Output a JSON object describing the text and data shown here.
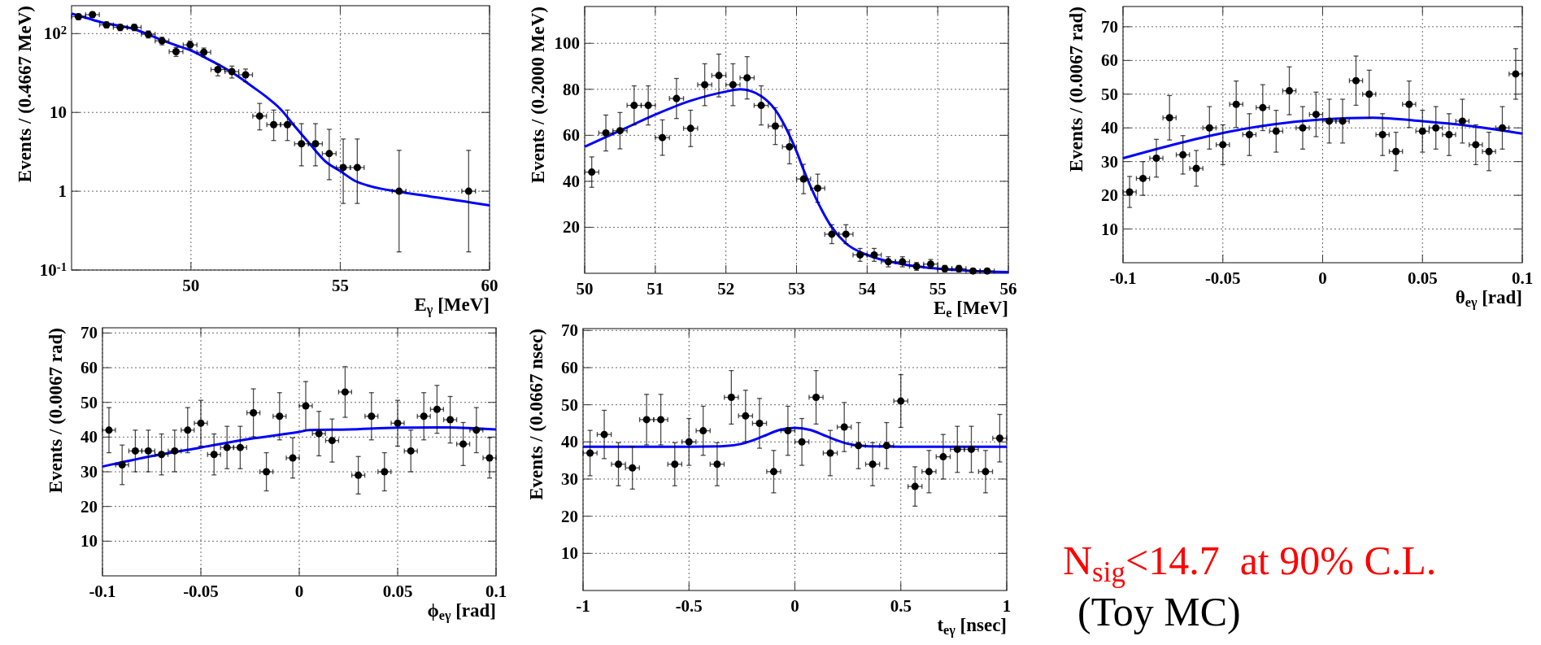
{
  "chart_data": [
    {
      "type": "scatter",
      "xlabel": "E$_{γ}$ [MeV]",
      "ylabel": "Events / (0.4667 MeV)",
      "xlim": [
        46,
        60
      ],
      "ylim": [
        0.1,
        226
      ],
      "xticks": [
        50,
        55,
        60
      ],
      "yticks": [
        {
          "value": 0.1,
          "label": "10$^{-1}$"
        },
        1,
        10,
        {
          "value": 100,
          "label": "10$^{2}$"
        }
      ],
      "log": "y",
      "grid": true,
      "series": [
        {
          "color": "#000000",
          "marker": "circle",
          "x": [
            46.23,
            46.7,
            47.17,
            47.63,
            48.1,
            48.57,
            49.03,
            49.5,
            49.97,
            50.43,
            50.9,
            51.37,
            51.83,
            52.3,
            52.77,
            53.23,
            53.7,
            54.17,
            54.63,
            55.1,
            55.57,
            56.97,
            59.3
          ],
          "values": [
            164,
            174,
            129,
            120,
            120,
            98,
            81,
            59,
            72,
            58,
            35,
            33,
            30,
            9,
            7,
            7,
            4,
            4,
            3,
            2,
            2,
            1,
            1
          ],
          "errors": [
            13,
            13,
            11,
            11,
            11,
            10,
            9,
            7.7,
            8.5,
            7.6,
            5.9,
            5.7,
            5.5,
            [
              6,
              13
            ],
            [
              4.4,
              10.7
            ],
            [
              4.4,
              10.7
            ],
            [
              2.1,
              7.2
            ],
            [
              2.1,
              7.2
            ],
            [
              1.4,
              6.1
            ],
            [
              0.7,
              4.6
            ],
            [
              0.7,
              4.6
            ],
            [
              0.17,
              3.3
            ],
            [
              0.17,
              3.3
            ]
          ],
          "xerrors": [
            0.23,
            0.23,
            0.23,
            0.23,
            0.23,
            0.23,
            0.23,
            0.23,
            0.23,
            0.23,
            0.23,
            0.23,
            0.23,
            0.23,
            0.23,
            0.23,
            0.23,
            0.23,
            0.23,
            0.23,
            0.23,
            0.23,
            0.23
          ]
        },
        {
          "type": "line",
          "color": "#0000ff",
          "x": [
            46,
            46.5,
            47,
            47.5,
            48,
            48.5,
            49,
            49.5,
            50,
            50.5,
            51,
            51.5,
            52,
            52.5,
            53,
            53.5,
            54,
            54.5,
            55,
            55.5,
            56,
            57,
            58,
            59,
            60
          ],
          "values": [
            179,
            158,
            139,
            128,
            117,
            100,
            83,
            71,
            61,
            49,
            39,
            30,
            22,
            16,
            11,
            6.5,
            3.9,
            2.4,
            1.8,
            1.35,
            1.16,
            0.98,
            0.86,
            0.76,
            0.66
          ]
        }
      ]
    },
    {
      "type": "scatter",
      "xlabel": "E$_{e}$ [MeV]",
      "ylabel": "Events / (0.2000 MeV)",
      "xlim": [
        50,
        56
      ],
      "ylim": [
        0,
        116
      ],
      "xticks": [
        50,
        51,
        52,
        53,
        54,
        55,
        56
      ],
      "yticks": [
        20,
        40,
        60,
        80,
        100
      ],
      "grid": true,
      "series": [
        {
          "color": "#000000",
          "marker": "circle",
          "x": [
            50.1,
            50.3,
            50.5,
            50.7,
            50.9,
            51.1,
            51.3,
            51.5,
            51.7,
            51.9,
            52.1,
            52.3,
            52.5,
            52.7,
            52.9,
            53.1,
            53.3,
            53.5,
            53.7,
            53.9,
            54.1,
            54.3,
            54.5,
            54.7,
            54.9,
            55.1,
            55.3,
            55.5,
            55.7
          ],
          "values": [
            44,
            61,
            62,
            73,
            73,
            59,
            76,
            63,
            82,
            86,
            82,
            85,
            73,
            64,
            55,
            41,
            37,
            17,
            17,
            8,
            8,
            5,
            5,
            3,
            4,
            2,
            2,
            1,
            1
          ],
          "errors": [
            6.6,
            7.8,
            7.9,
            8.5,
            8.5,
            7.7,
            8.7,
            7.9,
            9.1,
            9.3,
            9.1,
            9.2,
            8.5,
            8,
            7.4,
            6.4,
            6.1,
            4.1,
            4.1,
            2.8,
            2.8,
            2.2,
            2.2,
            1.7,
            2,
            1.4,
            1.4,
            1,
            1
          ],
          "xerrors": [
            0.1,
            0.1,
            0.1,
            0.1,
            0.1,
            0.1,
            0.1,
            0.1,
            0.1,
            0.1,
            0.1,
            0.1,
            0.1,
            0.1,
            0.1,
            0.1,
            0.1,
            0.1,
            0.1,
            0.1,
            0.1,
            0.1,
            0.1,
            0.1,
            0.1,
            0.1,
            0.1,
            0.1,
            0.1
          ]
        },
        {
          "type": "line",
          "color": "#0000ff",
          "x": [
            50,
            50.5,
            51,
            51.5,
            52,
            52.2,
            52.5,
            52.7,
            52.9,
            53,
            53.1,
            53.3,
            53.5,
            53.7,
            54,
            54.5,
            55,
            55.5,
            56
          ],
          "values": [
            55,
            62,
            69,
            75,
            79,
            80,
            77,
            71,
            60,
            53,
            45,
            31,
            20,
            13,
            8,
            4,
            2,
            1,
            0.5
          ]
        }
      ]
    },
    {
      "type": "scatter",
      "xlabel": "θ$_{eγ}$ [rad]",
      "ylabel": "Events / (0.0067 rad)",
      "xlim": [
        -0.1,
        0.1
      ],
      "ylim": [
        0,
        76
      ],
      "xticks": [
        -0.1,
        -0.05,
        0,
        0.05,
        0.1
      ],
      "yticks": [
        10,
        20,
        30,
        40,
        50,
        60,
        70
      ],
      "grid": true,
      "series": [
        {
          "color": "#000000",
          "marker": "circle",
          "x": [
            -0.0967,
            -0.09,
            -0.0833,
            -0.0767,
            -0.07,
            -0.0633,
            -0.0567,
            -0.05,
            -0.0433,
            -0.0367,
            -0.03,
            -0.0233,
            -0.0167,
            -0.01,
            -0.0033,
            0.0033,
            0.01,
            0.0167,
            0.0233,
            0.03,
            0.0367,
            0.0433,
            0.05,
            0.0567,
            0.0633,
            0.07,
            0.0767,
            0.0833,
            0.09,
            0.0967
          ],
          "values": [
            21,
            25,
            31,
            43,
            32,
            28,
            40,
            35,
            47,
            38,
            46,
            39,
            51,
            40,
            44,
            42,
            42,
            54,
            50,
            38,
            33,
            47,
            39,
            40,
            38,
            42,
            35,
            33,
            40,
            56
          ],
          "errors": [
            4.6,
            5,
            5.6,
            6.6,
            5.7,
            5.3,
            6.3,
            5.9,
            6.9,
            6.2,
            6.8,
            6.2,
            7.1,
            6.3,
            6.6,
            6.5,
            6.5,
            7.3,
            7.1,
            6.2,
            5.7,
            6.9,
            6.2,
            6.3,
            6.2,
            6.5,
            5.9,
            5.7,
            6.3,
            7.5
          ],
          "xerrors": [
            0.0033,
            0.0033,
            0.0033,
            0.0033,
            0.0033,
            0.0033,
            0.0033,
            0.0033,
            0.0033,
            0.0033,
            0.0033,
            0.0033,
            0.0033,
            0.0033,
            0.0033,
            0.0033,
            0.0033,
            0.0033,
            0.0033,
            0.0033,
            0.0033,
            0.0033,
            0.0033,
            0.0033,
            0.0033,
            0.0033,
            0.0033,
            0.0033,
            0.0033,
            0.0033
          ]
        },
        {
          "type": "line",
          "color": "#0000ff",
          "x": [
            -0.1,
            -0.075,
            -0.05,
            -0.025,
            0,
            0.025,
            0.05,
            0.075,
            0.1
          ],
          "values": [
            31,
            35,
            38.5,
            41,
            42.5,
            43,
            42,
            40.5,
            38.3
          ]
        }
      ]
    },
    {
      "type": "scatter",
      "xlabel": "ϕ$_{eγ}$ [rad]",
      "ylabel": "Events / (0.0067 rad)",
      "xlim": [
        -0.1,
        0.1
      ],
      "ylim": [
        0,
        71.5
      ],
      "xticks": [
        -0.1,
        -0.05,
        0,
        0.05,
        0.1
      ],
      "yticks": [
        10,
        20,
        30,
        40,
        50,
        60,
        70
      ],
      "grid": true,
      "series": [
        {
          "color": "#000000",
          "marker": "circle",
          "x": [
            -0.0967,
            -0.09,
            -0.0833,
            -0.0767,
            -0.07,
            -0.0633,
            -0.0567,
            -0.05,
            -0.0433,
            -0.0367,
            -0.03,
            -0.0233,
            -0.0167,
            -0.01,
            -0.0033,
            0.0033,
            0.01,
            0.0167,
            0.0233,
            0.03,
            0.0367,
            0.0433,
            0.05,
            0.0567,
            0.0633,
            0.07,
            0.0767,
            0.0833,
            0.09,
            0.0967
          ],
          "values": [
            42,
            32,
            36,
            36,
            35,
            36,
            42,
            44,
            35,
            37,
            37,
            47,
            30,
            46,
            34,
            49,
            41,
            39,
            53,
            29,
            46,
            30,
            44,
            36,
            46,
            48,
            45,
            38,
            42,
            34
          ],
          "errors": [
            6.5,
            5.7,
            6,
            6,
            5.9,
            6,
            6.5,
            6.6,
            5.9,
            6.1,
            6.1,
            6.9,
            5.5,
            6.8,
            5.8,
            7,
            6.4,
            6.2,
            7.3,
            5.4,
            6.8,
            5.5,
            6.6,
            6,
            6.8,
            6.9,
            6.7,
            6.2,
            6.5,
            5.8
          ],
          "xerrors": [
            0.0033,
            0.0033,
            0.0033,
            0.0033,
            0.0033,
            0.0033,
            0.0033,
            0.0033,
            0.0033,
            0.0033,
            0.0033,
            0.0033,
            0.0033,
            0.0033,
            0.0033,
            0.0033,
            0.0033,
            0.0033,
            0.0033,
            0.0033,
            0.0033,
            0.0033,
            0.0033,
            0.0033,
            0.0033,
            0.0033,
            0.0033,
            0.0033,
            0.0033,
            0.0033
          ]
        },
        {
          "type": "line",
          "color": "#0000ff",
          "x": [
            -0.1,
            -0.075,
            -0.05,
            -0.025,
            0,
            0.005,
            0.025,
            0.05,
            0.075,
            0.1
          ],
          "values": [
            31.5,
            34.5,
            37,
            39.5,
            41.5,
            42,
            42.2,
            42.7,
            42.8,
            42.2
          ]
        }
      ]
    },
    {
      "type": "scatter",
      "xlabel": "t$_{eγ}$ [nsec]",
      "ylabel": "Events / (0.0667 nsec)",
      "xlim": [
        -1,
        1
      ],
      "ylim": [
        0,
        70.5
      ],
      "xticks": [
        -1,
        -0.5,
        0,
        0.5,
        1
      ],
      "yticks": [
        10,
        20,
        30,
        40,
        50,
        60,
        70
      ],
      "grid": true,
      "series": [
        {
          "color": "#000000",
          "marker": "circle",
          "x": [
            -0.967,
            -0.9,
            -0.833,
            -0.767,
            -0.7,
            -0.633,
            -0.567,
            -0.5,
            -0.433,
            -0.367,
            -0.3,
            -0.233,
            -0.167,
            -0.1,
            -0.033,
            0.033,
            0.1,
            0.167,
            0.233,
            0.3,
            0.367,
            0.433,
            0.5,
            0.567,
            0.633,
            0.7,
            0.767,
            0.833,
            0.9,
            0.967
          ],
          "values": [
            37,
            42,
            34,
            33,
            46,
            46,
            34,
            40,
            43,
            34,
            52,
            47,
            45,
            32,
            43,
            40,
            52,
            37,
            44,
            39,
            34,
            39,
            51,
            28,
            32,
            36,
            38,
            38,
            32,
            41
          ],
          "errors": [
            6.1,
            6.5,
            5.8,
            5.7,
            6.8,
            6.8,
            5.8,
            6.3,
            6.6,
            5.8,
            7.2,
            6.9,
            6.7,
            5.7,
            6.6,
            6.3,
            7.2,
            6.1,
            6.6,
            6.2,
            5.8,
            6.2,
            7.1,
            5.3,
            5.7,
            6,
            6.2,
            6.2,
            5.7,
            6.4
          ],
          "xerrors": [
            0.033,
            0.033,
            0.033,
            0.033,
            0.033,
            0.033,
            0.033,
            0.033,
            0.033,
            0.033,
            0.033,
            0.033,
            0.033,
            0.033,
            0.033,
            0.033,
            0.033,
            0.033,
            0.033,
            0.033,
            0.033,
            0.033,
            0.033,
            0.033,
            0.033,
            0.033,
            0.033,
            0.033,
            0.033,
            0.033
          ]
        },
        {
          "type": "line",
          "color": "#0000ff",
          "x": [
            -1,
            -0.5,
            -0.35,
            -0.25,
            -0.15,
            -0.075,
            0,
            0.075,
            0.15,
            0.25,
            0.35,
            0.5,
            1
          ],
          "values": [
            38.7,
            38.7,
            38.8,
            39.5,
            41.5,
            43.2,
            43.8,
            43.2,
            41.5,
            39.5,
            38.8,
            38.7,
            38.7
          ]
        }
      ]
    },
    {
      "type": "other",
      "annotations": [
        "N$_{sig}$<14.7  at 90% C.L.",
        "(Toy MC)"
      ]
    }
  ]
}
